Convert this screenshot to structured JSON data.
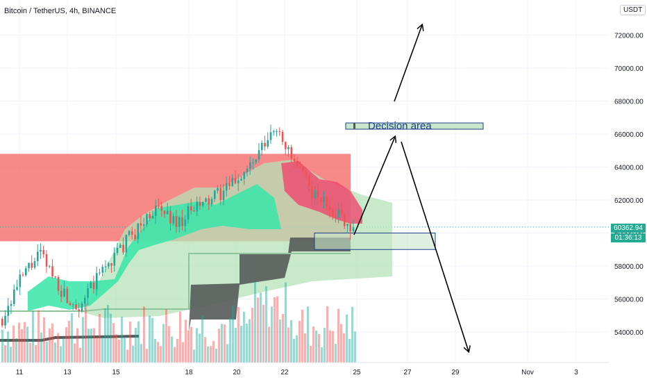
{
  "header": {
    "title": "Bitcoin / TetherUS, 4h, BINANCE",
    "currency": "USDT"
  },
  "last_price": {
    "value": "60362.94",
    "countdown": "01:36:13"
  },
  "annotation": {
    "decision_label": "Decision area"
  },
  "colors": {
    "bull": "#26a69a",
    "bear": "#ef5350",
    "resistance_zone": "#f45b5b",
    "cloud_green": "#37e6a8",
    "cloud_red": "#f0466e",
    "cloud_dark": "#555b5a",
    "cloud_light": "#b6e2b8",
    "arrow": "#000000",
    "decision_box": "#c8e6c9",
    "decision_border": "#1f3f8c"
  },
  "chart_data": {
    "type": "candlestick",
    "title": "Bitcoin / TetherUS, 4h, BINANCE",
    "xlabel": "",
    "ylabel": "",
    "x_ticks": [
      "11",
      "13",
      "15",
      "18",
      "20",
      "22",
      "25",
      "27",
      "29",
      "Nov",
      "3"
    ],
    "y_ticks": [
      54000,
      56000,
      58000,
      60000,
      62000,
      64000,
      66000,
      68000,
      70000,
      72000
    ],
    "ylim": [
      52000,
      74300
    ],
    "grid": true,
    "resistance_zone": {
      "from": 59500,
      "to": 64800
    },
    "decision_area": {
      "from": 66600,
      "to": 67000
    },
    "support_box": {
      "from": 59000,
      "to": 60000
    },
    "last_price": 60362.94,
    "close_path": [
      54800,
      56500,
      57800,
      58700,
      57500,
      56200,
      55600,
      56500,
      57800,
      58600,
      59600,
      60400,
      61400,
      61200,
      60600,
      61300,
      61700,
      62200,
      62700,
      63500,
      64200,
      65400,
      66500,
      64500,
      63400,
      62200,
      61700,
      61000,
      60300
    ]
  }
}
